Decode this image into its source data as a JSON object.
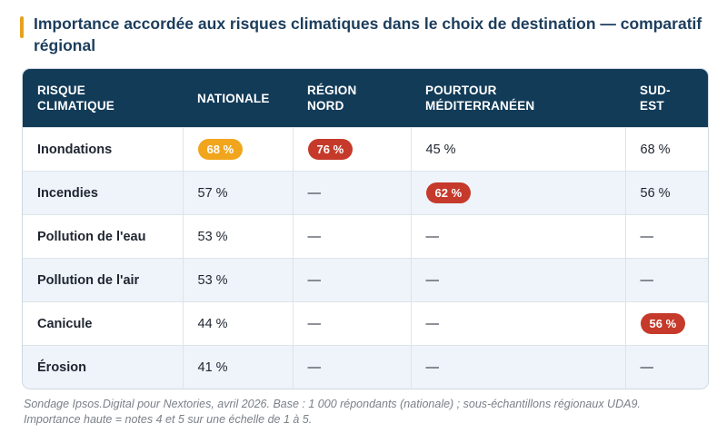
{
  "header": {
    "title": "Importance accordée aux risques climatiques dans le choix de destination — comparatif régional"
  },
  "colors": {
    "accent": "#e8a020",
    "header_bg": "#123b58",
    "pill_gold": "#f0a51c",
    "pill_red": "#c53a2a"
  },
  "table": {
    "headers": [
      "RISQUE\nCLIMATIQUE",
      "NATIONALE",
      "RÉGION\nNORD",
      "POURTOUR\nMÉDITERRANÉEN",
      "SUD-\nEST"
    ],
    "rows": [
      {
        "label": "Inondations",
        "cells": [
          {
            "text": "68 %",
            "style": "gold"
          },
          {
            "text": "76 %",
            "style": "red"
          },
          {
            "text": "45 %",
            "style": "plain"
          },
          {
            "text": "68 %",
            "style": "plain"
          }
        ]
      },
      {
        "label": "Incendies",
        "cells": [
          {
            "text": "57 %",
            "style": "plain"
          },
          {
            "text": "—",
            "style": "plain"
          },
          {
            "text": "62 %",
            "style": "red"
          },
          {
            "text": "56 %",
            "style": "plain"
          }
        ]
      },
      {
        "label": "Pollution de l'eau",
        "cells": [
          {
            "text": "53 %",
            "style": "plain"
          },
          {
            "text": "—",
            "style": "plain"
          },
          {
            "text": "—",
            "style": "plain"
          },
          {
            "text": "—",
            "style": "plain"
          }
        ]
      },
      {
        "label": "Pollution de l'air",
        "cells": [
          {
            "text": "53 %",
            "style": "plain"
          },
          {
            "text": "—",
            "style": "plain"
          },
          {
            "text": "—",
            "style": "plain"
          },
          {
            "text": "—",
            "style": "plain"
          }
        ]
      },
      {
        "label": "Canicule",
        "cells": [
          {
            "text": "44 %",
            "style": "plain"
          },
          {
            "text": "—",
            "style": "plain"
          },
          {
            "text": "—",
            "style": "plain"
          },
          {
            "text": "56 %",
            "style": "red"
          }
        ]
      },
      {
        "label": "Érosion",
        "cells": [
          {
            "text": "41 %",
            "style": "plain"
          },
          {
            "text": "—",
            "style": "plain"
          },
          {
            "text": "—",
            "style": "plain"
          },
          {
            "text": "—",
            "style": "plain"
          }
        ]
      }
    ]
  },
  "footnote": {
    "line1": "Sondage Ipsos.Digital pour Nextories, avril 2026. Base : 1 000 répondants (nationale) ; sous-échantillons régionaux UDA9.",
    "line2": "Importance haute = notes 4 et 5 sur une échelle de 1 à 5."
  }
}
